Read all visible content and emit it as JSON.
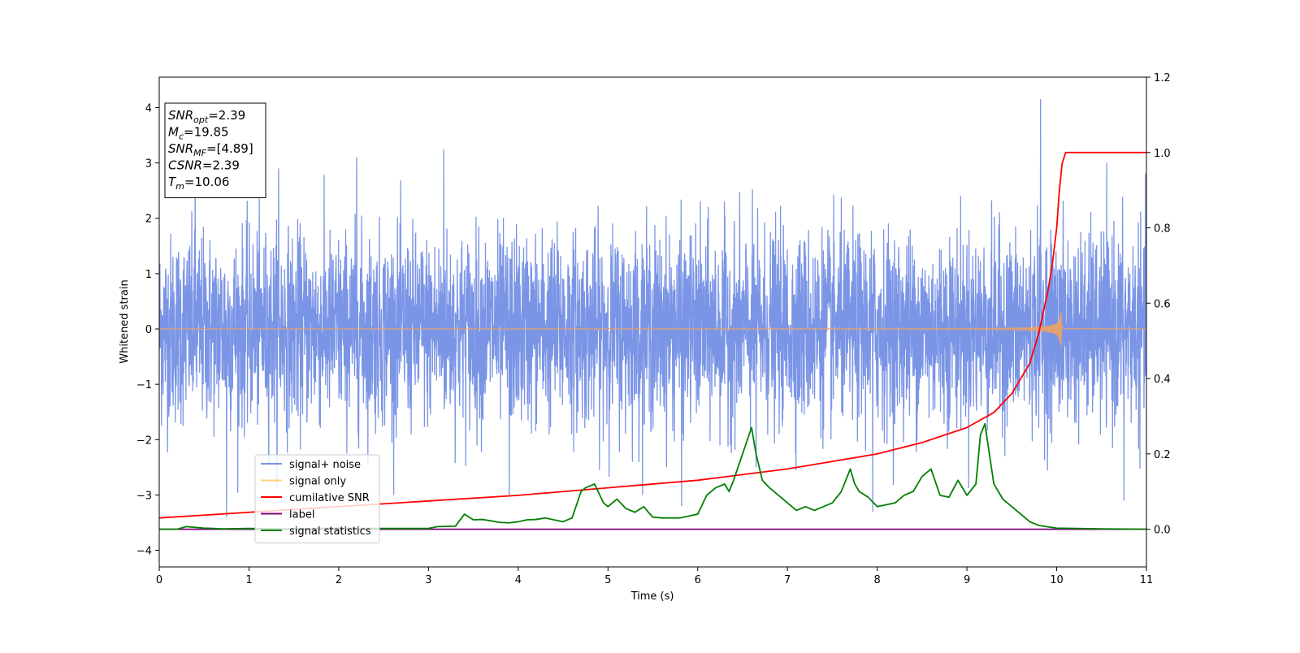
{
  "chart_data": {
    "type": "line",
    "xlabel": "Time (s)",
    "ylabel": "Whitened strain",
    "xlim": [
      0,
      11
    ],
    "ylim_left": [
      -4.3,
      4.55
    ],
    "ylim_right": [
      -0.1,
      1.2
    ],
    "x_ticks": [
      0,
      1,
      2,
      3,
      4,
      5,
      6,
      7,
      8,
      9,
      10,
      11
    ],
    "x_tick_labels": [
      "0",
      "1",
      "2",
      "3",
      "4",
      "5",
      "6",
      "7",
      "8",
      "9",
      "10",
      "11"
    ],
    "y_left_ticks": [
      -4,
      -3,
      -2,
      -1,
      0,
      1,
      2,
      3,
      4
    ],
    "y_left_tick_labels": [
      "−4",
      "−3",
      "−2",
      "−1",
      "0",
      "1",
      "2",
      "3",
      "4"
    ],
    "y_right_ticks": [
      0,
      0.2,
      0.4,
      0.6,
      0.8,
      1.0,
      1.2
    ],
    "y_right_tick_labels": [
      "0.0",
      "0.2",
      "0.4",
      "0.6",
      "0.8",
      "1.0",
      "1.2"
    ],
    "grid": false,
    "legend_position": "lower-left",
    "info_box": {
      "lines": [
        {
          "sym": "SNR",
          "sub": "opt",
          "val": "=2.39"
        },
        {
          "sym": "M",
          "sub": "c",
          "val": "=19.85"
        },
        {
          "sym": "SNR",
          "sub": "MF",
          "val": "=[4.89]"
        },
        {
          "sym": "CSNR",
          "sub": "",
          "val": "=2.39"
        },
        {
          "sym": "T",
          "sub": "m",
          "val": "=10.06"
        }
      ]
    },
    "series": [
      {
        "name": "signal+ noise",
        "color": "#7b95e6",
        "axis": "left",
        "kind": "noise",
        "amplitude": 1.0,
        "spikes": [
          [
            0.75,
            -3.4
          ],
          [
            0.4,
            2.7
          ],
          [
            1.33,
            2.9
          ],
          [
            2.2,
            3.1
          ],
          [
            3.17,
            3.25
          ],
          [
            3.9,
            -3.0
          ],
          [
            5.82,
            -3.2
          ],
          [
            6.65,
            -2.5
          ],
          [
            7.95,
            -3.3
          ],
          [
            9.82,
            4.15
          ],
          [
            10.75,
            -3.1
          ],
          [
            11.0,
            2.3
          ]
        ]
      },
      {
        "name": "signal only",
        "color": "#f2a45a",
        "axis": "left",
        "kind": "chirp",
        "merger_time": 10.06,
        "peak_amplitude": 0.38
      },
      {
        "name": "cumilative SNR",
        "color": "#ff0000",
        "axis": "right",
        "x": [
          0,
          1,
          2,
          3,
          4,
          5,
          6,
          7,
          8,
          8.5,
          9,
          9.3,
          9.5,
          9.7,
          9.8,
          9.9,
          9.95,
          10.0,
          10.03,
          10.06,
          10.1,
          11
        ],
        "y": [
          0.03,
          0.045,
          0.06,
          0.075,
          0.09,
          0.11,
          0.13,
          0.16,
          0.2,
          0.23,
          0.27,
          0.31,
          0.36,
          0.44,
          0.52,
          0.63,
          0.7,
          0.8,
          0.9,
          0.97,
          1.0,
          1.0
        ]
      },
      {
        "name": "label",
        "color": "#800080",
        "axis": "right",
        "x": [
          0,
          11
        ],
        "y": [
          0,
          0
        ]
      },
      {
        "name": "signal statistics",
        "color": "#008000",
        "axis": "right",
        "x": [
          0,
          0.2,
          0.3,
          0.5,
          0.7,
          1.0,
          1.5,
          2.0,
          2.5,
          3.0,
          3.1,
          3.3,
          3.4,
          3.5,
          3.6,
          3.8,
          3.9,
          4.0,
          4.1,
          4.2,
          4.3,
          4.5,
          4.6,
          4.7,
          4.75,
          4.85,
          4.95,
          5.0,
          5.1,
          5.2,
          5.3,
          5.4,
          5.45,
          5.5,
          5.6,
          5.7,
          5.8,
          5.9,
          6.0,
          6.1,
          6.2,
          6.3,
          6.35,
          6.4,
          6.5,
          6.6,
          6.65,
          6.72,
          6.8,
          6.9,
          7.0,
          7.1,
          7.2,
          7.3,
          7.4,
          7.5,
          7.6,
          7.7,
          7.75,
          7.8,
          7.9,
          8.0,
          8.1,
          8.2,
          8.3,
          8.4,
          8.5,
          8.6,
          8.7,
          8.8,
          8.9,
          9.0,
          9.1,
          9.15,
          9.2,
          9.25,
          9.3,
          9.4,
          9.5,
          9.6,
          9.7,
          9.8,
          10.0,
          10.5,
          11.0
        ],
        "y": [
          0,
          0,
          0.007,
          0.003,
          0.001,
          0.002,
          0.001,
          0.003,
          0.002,
          0.002,
          0.007,
          0.008,
          0.04,
          0.025,
          0.026,
          0.018,
          0.017,
          0.02,
          0.025,
          0.026,
          0.03,
          0.02,
          0.03,
          0.1,
          0.11,
          0.12,
          0.07,
          0.06,
          0.08,
          0.055,
          0.045,
          0.06,
          0.045,
          0.032,
          0.03,
          0.03,
          0.03,
          0.035,
          0.04,
          0.09,
          0.11,
          0.12,
          0.1,
          0.13,
          0.2,
          0.27,
          0.2,
          0.13,
          0.11,
          0.09,
          0.07,
          0.05,
          0.06,
          0.05,
          0.06,
          0.07,
          0.1,
          0.16,
          0.12,
          0.1,
          0.085,
          0.06,
          0.065,
          0.07,
          0.09,
          0.1,
          0.14,
          0.16,
          0.09,
          0.085,
          0.13,
          0.09,
          0.12,
          0.25,
          0.28,
          0.2,
          0.12,
          0.08,
          0.06,
          0.04,
          0.02,
          0.01,
          0.003,
          0.001,
          0.0
        ]
      }
    ]
  }
}
